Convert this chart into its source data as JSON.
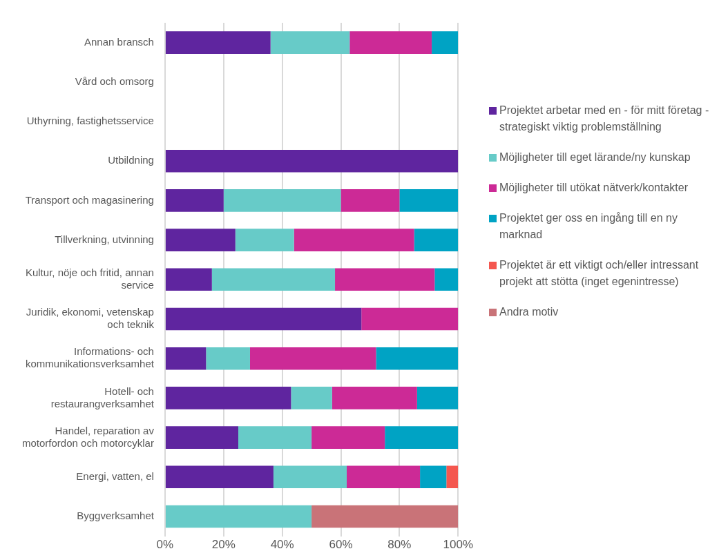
{
  "chart_data": {
    "type": "bar",
    "orientation": "horizontal",
    "stacked": true,
    "categories": [
      "Annan bransch",
      "Vård och omsorg",
      "Uthyrning, fastighetsservice",
      "Utbildning",
      "Transport och magasinering",
      "Tillverkning, utvinning",
      "Kultur, nöje och fritid, annan service",
      "Juridik, ekonomi, vetenskap och teknik",
      "Informations- och kommunikationsverksamhet",
      "Hotell- och restaurangverksamhet",
      "Handel, reparation av motorfordon och motorcyklar",
      "Energi, vatten, el",
      "Byggverksamhet"
    ],
    "series": [
      {
        "name": "Projektet arbetar med en - för mitt företag - strategiskt viktig problemställning",
        "color": "#5f259f",
        "values": [
          36,
          null,
          null,
          100,
          20,
          24,
          16,
          67,
          14,
          43,
          25,
          37,
          0
        ]
      },
      {
        "name": "Möjligheter till eget lärande/ny kunskap",
        "color": "#67cbc8",
        "values": [
          27,
          null,
          null,
          0,
          40,
          20,
          42,
          0,
          15,
          14,
          25,
          25,
          50
        ]
      },
      {
        "name": "Möjligheter till utökat nätverk/kontakter",
        "color": "#cc2a96",
        "values": [
          28,
          null,
          null,
          0,
          20,
          41,
          34,
          33,
          43,
          29,
          25,
          25,
          0
        ]
      },
      {
        "name": "Projektet ger oss en ingång till en ny marknad",
        "color": "#00a3c4",
        "values": [
          9,
          null,
          null,
          0,
          20,
          15,
          8,
          0,
          28,
          14,
          25,
          9,
          0
        ]
      },
      {
        "name": "Projektet är ett viktigt och/eller intressant projekt att stötta (inget egenintresse)",
        "color": "#f4574f",
        "values": [
          0,
          null,
          null,
          0,
          0,
          0,
          0,
          0,
          0,
          0,
          0,
          4,
          0
        ]
      },
      {
        "name": "Andra motiv",
        "color": "#c97378",
        "values": [
          0,
          null,
          null,
          0,
          0,
          0,
          0,
          0,
          0,
          0,
          0,
          0,
          50
        ]
      }
    ],
    "xlim": [
      0,
      100
    ],
    "xticks": [
      {
        "value": 0,
        "label": "0%"
      },
      {
        "value": 20,
        "label": "20%"
      },
      {
        "value": 40,
        "label": "40%"
      },
      {
        "value": 60,
        "label": "60%"
      },
      {
        "value": 80,
        "label": "80%"
      },
      {
        "value": 100,
        "label": "100%"
      }
    ],
    "grid": "x",
    "legend": "right"
  }
}
